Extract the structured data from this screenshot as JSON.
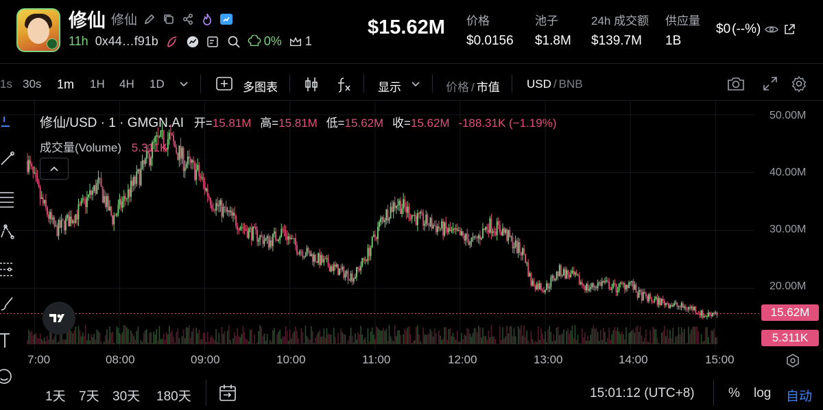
{
  "token": {
    "name": "修仙",
    "alias": "修仙",
    "age": "11h",
    "address": "0x44…f91b",
    "holder_pct": "0%",
    "holder_count": "1"
  },
  "header": {
    "market_cap": "$15.62M",
    "stats": [
      {
        "label": "价格",
        "value": "$0.0156"
      },
      {
        "label": "池子",
        "value": "$1.8M"
      },
      {
        "label": "24h 成交额",
        "value": "$139.7M"
      },
      {
        "label": "供应量",
        "value": "1B"
      }
    ],
    "pnl": "$0",
    "pnl_pct": "(--%)"
  },
  "toolbar": {
    "partial_interval": "1s",
    "intervals": [
      "30s",
      "1m",
      "1H",
      "4H",
      "1D"
    ],
    "active_interval": "1m",
    "multi_chart": "多图表",
    "display": "显示",
    "price_label": "价格",
    "slash": "/",
    "mcap_label": "市值",
    "usd": "USD",
    "bnb": "BNB"
  },
  "legend": {
    "symbol": "修仙/USD · 1 · GMGN.AI",
    "open_label": "开=",
    "open": "15.81M",
    "high_label": "高=",
    "high": "15.81M",
    "low_label": "低=",
    "low": "15.62M",
    "close_label": "收=",
    "close": "15.62M",
    "change": "-188.31K (−1.19%)",
    "volume_label": "成交量(Volume)",
    "volume": "5.311K"
  },
  "price_badge": "15.62M",
  "volume_badge": "5.311K",
  "footer": {
    "ranges": [
      "1天",
      "7天",
      "30天",
      "180天"
    ],
    "time": "15:01:12 (UTC+8)",
    "percent": "%",
    "log": "log",
    "auto": "自动"
  },
  "colors": {
    "up": "#7fd47f",
    "down": "#e0507a",
    "accent": "#e0507a",
    "auto": "#3b82f6"
  },
  "chart_data": {
    "type": "candlestick",
    "y_unit": "M USD",
    "y_axis_labels": [
      "50.00M",
      "40.00M",
      "30.00M",
      "20.00M"
    ],
    "y_ticks": [
      50,
      40,
      30,
      20
    ],
    "ylim": [
      9.4,
      52.4
    ],
    "x_axis_labels": [
      "7:00",
      "08:00",
      "09:00",
      "10:00",
      "11:00",
      "12:00",
      "13:00",
      "14:00",
      "15:00"
    ],
    "x_ticks": [
      "07:00",
      "08:00",
      "09:00",
      "10:00",
      "11:00",
      "12:00",
      "13:00",
      "14:00",
      "15:00"
    ],
    "x_range": [
      "06:55",
      "15:25"
    ],
    "price_path": [
      [
        "06:55",
        42
      ],
      [
        "07:05",
        35
      ],
      [
        "07:15",
        30
      ],
      [
        "07:30",
        33
      ],
      [
        "07:45",
        38
      ],
      [
        "07:55",
        32
      ],
      [
        "08:05",
        36
      ],
      [
        "08:15",
        40
      ],
      [
        "08:25",
        45
      ],
      [
        "08:35",
        46
      ],
      [
        "08:45",
        42
      ],
      [
        "08:55",
        40
      ],
      [
        "09:05",
        35
      ],
      [
        "09:15",
        33
      ],
      [
        "09:30",
        30
      ],
      [
        "09:45",
        28
      ],
      [
        "09:55",
        30
      ],
      [
        "10:05",
        27
      ],
      [
        "10:20",
        25
      ],
      [
        "10:35",
        23
      ],
      [
        "10:45",
        22
      ],
      [
        "10:55",
        26
      ],
      [
        "11:05",
        32
      ],
      [
        "11:15",
        35
      ],
      [
        "11:20",
        34
      ],
      [
        "11:30",
        32
      ],
      [
        "11:40",
        31
      ],
      [
        "11:50",
        30
      ],
      [
        "12:00",
        29
      ],
      [
        "12:10",
        28
      ],
      [
        "12:20",
        31
      ],
      [
        "12:30",
        30
      ],
      [
        "12:40",
        27
      ],
      [
        "12:45",
        26
      ],
      [
        "12:50",
        21
      ],
      [
        "13:00",
        20
      ],
      [
        "13:10",
        23
      ],
      [
        "13:20",
        22
      ],
      [
        "13:30",
        20
      ],
      [
        "13:40",
        21
      ],
      [
        "13:50",
        20
      ],
      [
        "14:00",
        21
      ],
      [
        "14:05",
        19
      ],
      [
        "14:15",
        18
      ],
      [
        "14:25",
        17.5
      ],
      [
        "14:35",
        16.8
      ],
      [
        "14:45",
        16.5
      ],
      [
        "14:52",
        15.2
      ],
      [
        "15:00",
        16.0
      ],
      [
        "15:01",
        15.62
      ]
    ],
    "volume_max_k": 40
  }
}
